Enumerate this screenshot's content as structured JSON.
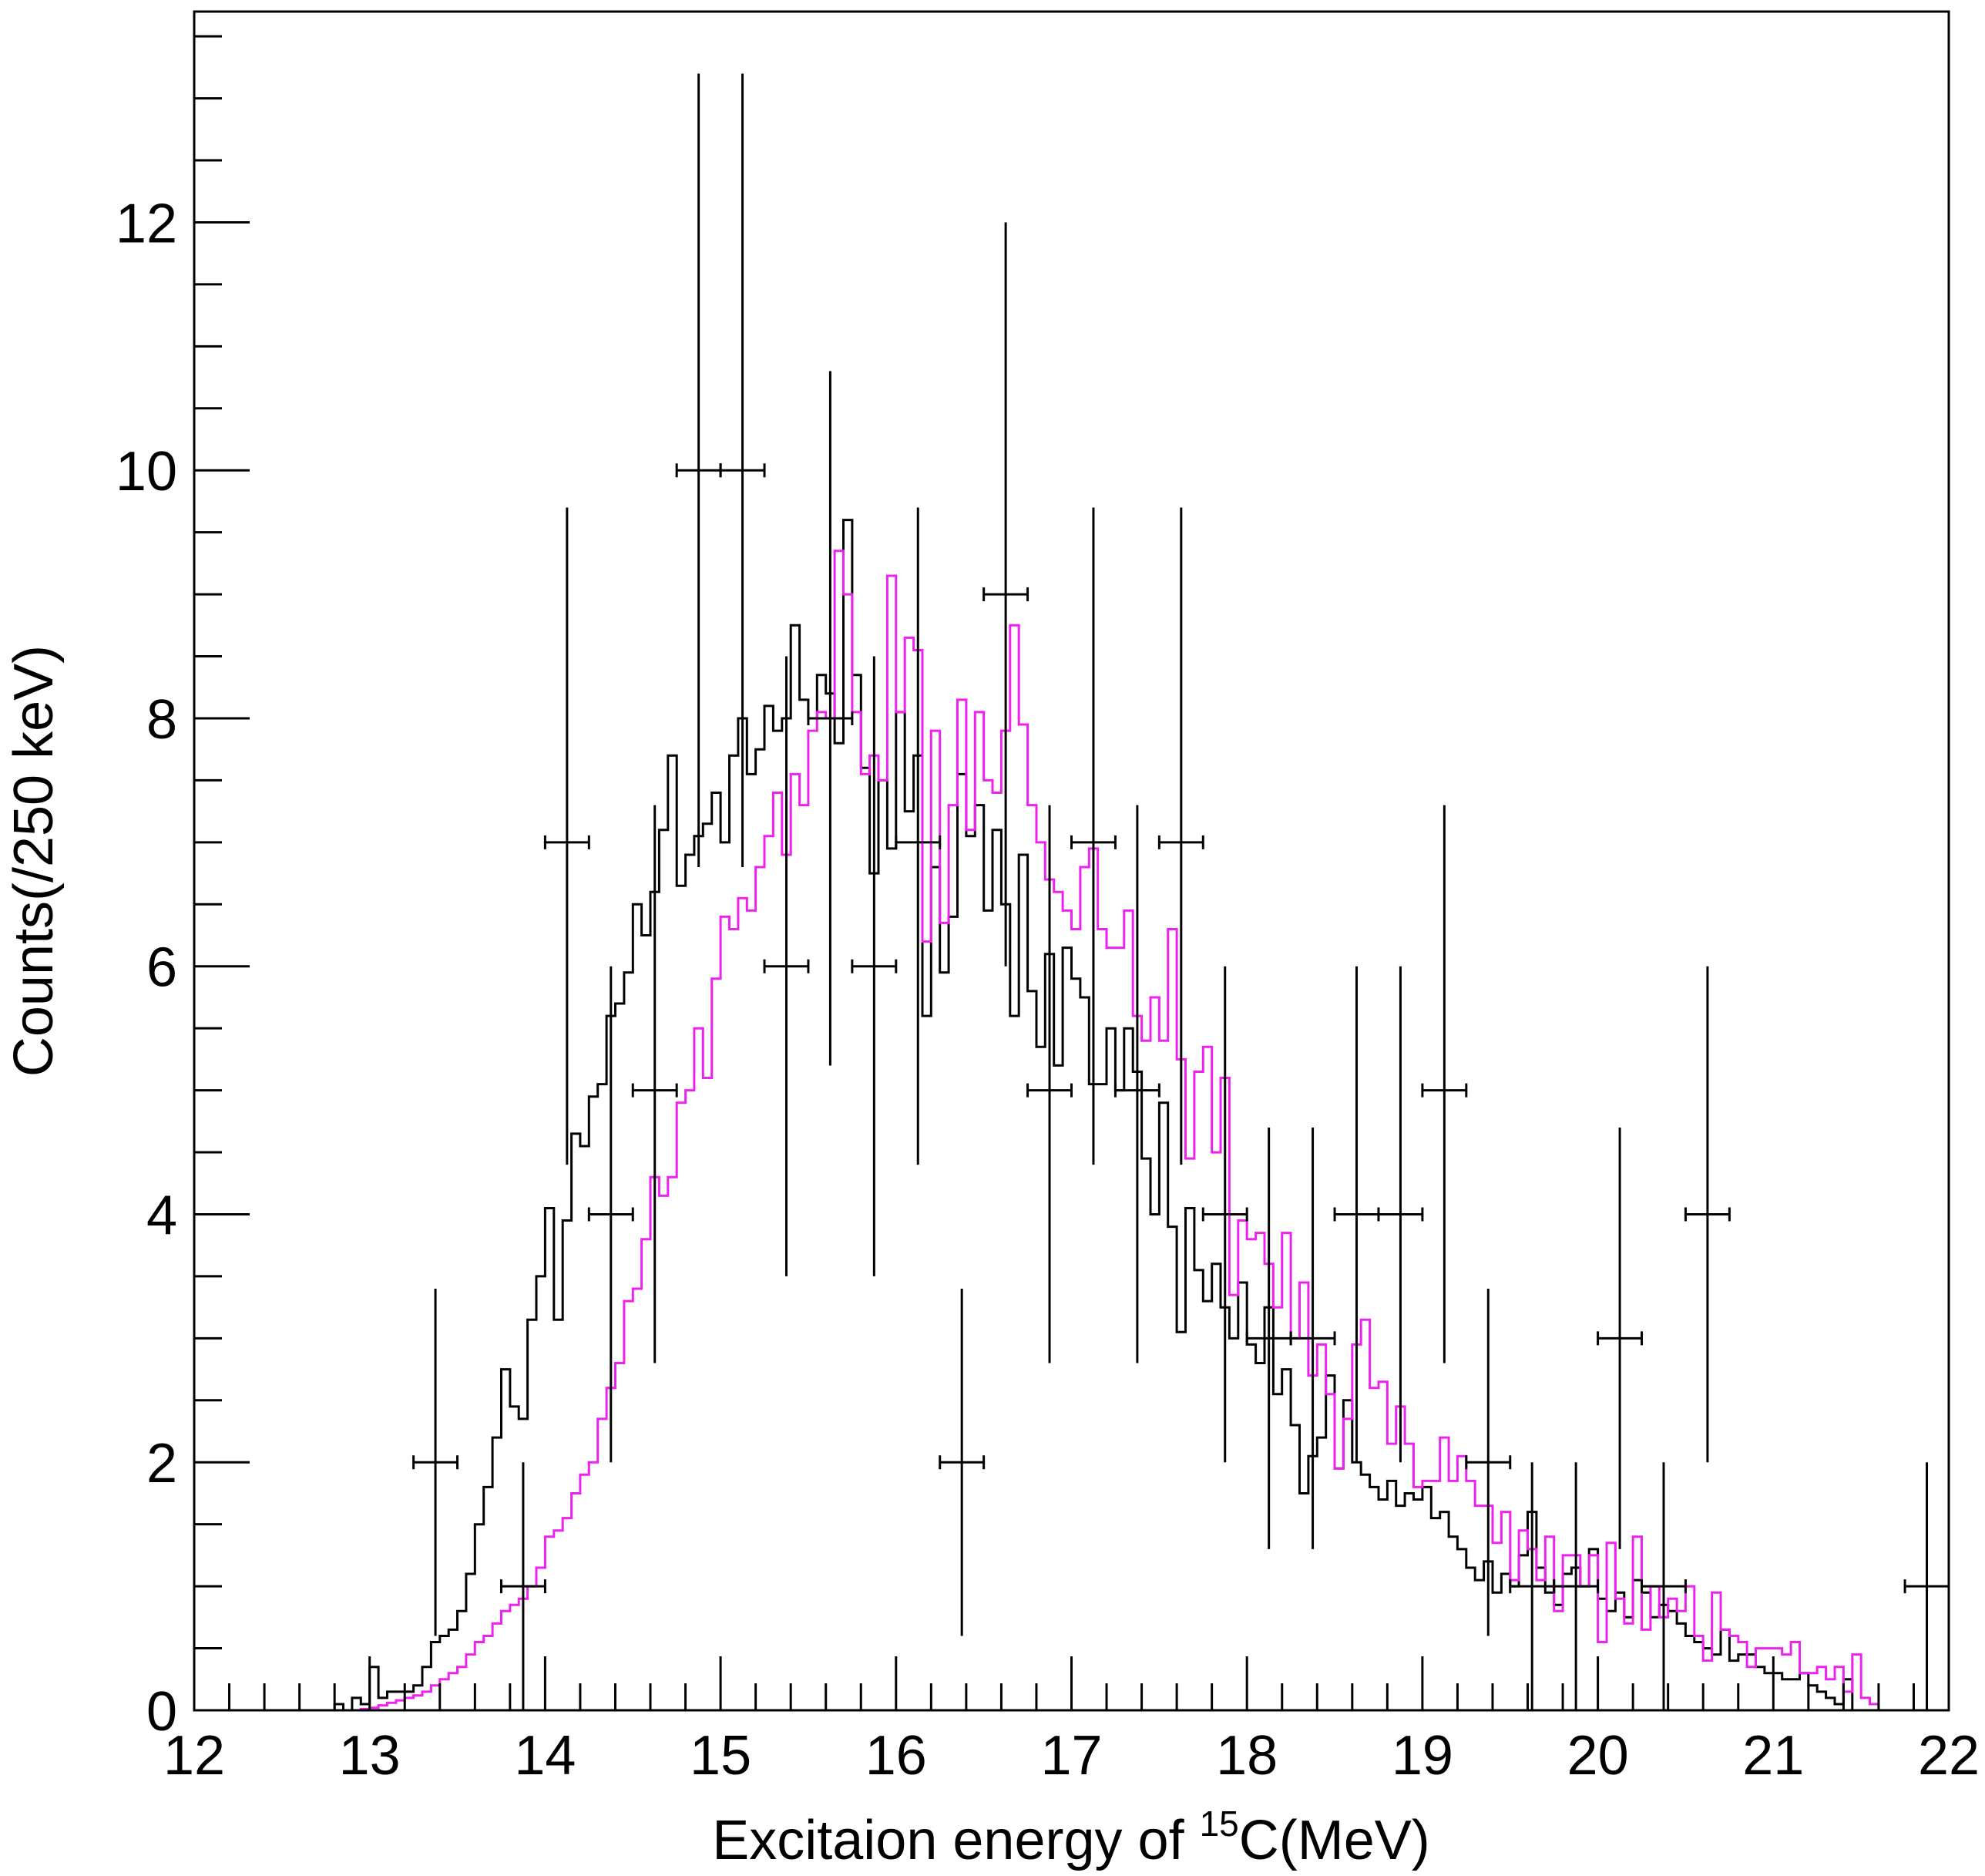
{
  "chart_data": {
    "type": "histogram",
    "xlabel_main": "Excitaion energy of ",
    "xlabel_super": "15",
    "xlabel_tail": "C(MeV)",
    "ylabel": "Counts(/250 keV)",
    "xlim": [
      12,
      22
    ],
    "ylim": [
      0,
      13.7
    ],
    "x_ticks": [
      12,
      13,
      14,
      15,
      16,
      17,
      18,
      19,
      20,
      21,
      22
    ],
    "y_ticks": [
      0,
      2,
      4,
      6,
      8,
      10,
      12
    ],
    "grid": false,
    "colors": {
      "black_hist": "#000000",
      "magenta_hist": "#ee22ee",
      "data": "#000000"
    },
    "bin_width": 0.05,
    "black_hist": [
      0,
      0,
      0,
      0,
      0,
      0,
      0,
      0,
      0,
      0,
      0,
      0,
      0,
      0,
      0,
      0,
      0.05,
      0,
      0.1,
      0.05,
      0.35,
      0.1,
      0.15,
      0.15,
      0.15,
      0.2,
      0.35,
      0.55,
      0.6,
      0.65,
      0.8,
      1.1,
      1.5,
      1.8,
      2.2,
      2.75,
      2.45,
      2.35,
      3.15,
      3.5,
      4.05,
      3.15,
      3.95,
      4.65,
      4.55,
      4.95,
      5.05,
      5.6,
      5.7,
      5.95,
      6.5,
      6.25,
      6.6,
      7.1,
      7.7,
      6.65,
      6.9,
      7.05,
      7.15,
      7.4,
      7.0,
      7.7,
      8.0,
      7.55,
      7.75,
      8.1,
      7.9,
      8.0,
      8.75,
      8.15,
      8.0,
      8.35,
      8.2,
      7.8,
      9.6,
      8.35,
      7.6,
      6.75,
      7.5,
      6.95,
      8.05,
      7.25,
      7.7,
      5.6,
      6.8,
      5.95,
      6.4,
      7.55,
      7.05,
      7.3,
      6.45,
      7.1,
      6.5,
      5.6,
      6.9,
      5.8,
      5.35,
      6.1,
      5.2,
      6.15,
      5.9,
      5.75,
      5.05,
      5.05,
      5.5,
      5.0,
      5.5,
      5.15,
      4.45,
      4.0,
      4.9,
      3.9,
      3.05,
      4.05,
      3.55,
      3.3,
      3.6,
      3.25,
      3.0,
      3.45,
      2.95,
      2.8,
      3.25,
      2.55,
      2.75,
      2.3,
      1.75,
      2.05,
      2.2,
      2.7,
      1.95,
      2.5,
      2.0,
      1.9,
      1.8,
      1.7,
      1.85,
      1.65,
      1.75,
      1.7,
      1.8,
      1.55,
      1.6,
      1.4,
      1.3,
      1.15,
      1.05,
      1.2,
      0.95,
      1.1,
      1.0,
      1.25,
      1.6,
      1.15,
      0.95,
      0.85,
      1.1,
      1.15,
      1.0,
      1.3,
      0.9,
      0.8,
      0.95,
      0.75,
      1.05,
      0.95,
      0.75,
      0.85,
      0.8,
      0.7,
      0.6,
      0.55,
      0.5,
      0.45,
      0.65,
      0.4,
      0.45,
      0.45,
      0.35,
      0.3,
      0.3,
      0.25,
      0.25,
      0.3,
      0.2,
      0.15,
      0.1,
      0.05,
      0.25
    ],
    "magenta_hist": [
      0,
      0,
      0,
      0,
      0,
      0,
      0,
      0,
      0,
      0,
      0,
      0,
      0,
      0,
      0,
      0,
      0,
      0,
      0,
      0.01,
      0.02,
      0.04,
      0.06,
      0.08,
      0.1,
      0.12,
      0.15,
      0.2,
      0.25,
      0.3,
      0.35,
      0.45,
      0.55,
      0.6,
      0.7,
      0.8,
      0.85,
      0.9,
      1.0,
      1.15,
      1.4,
      1.45,
      1.55,
      1.75,
      1.9,
      2.0,
      2.35,
      2.6,
      2.8,
      3.3,
      3.4,
      3.8,
      4.3,
      4.15,
      4.3,
      4.9,
      5.0,
      5.5,
      5.1,
      5.9,
      6.4,
      6.3,
      6.55,
      6.45,
      6.8,
      7.05,
      7.4,
      6.9,
      7.55,
      7.3,
      7.9,
      8.05,
      8.0,
      9.35,
      9.0,
      8.05,
      7.55,
      7.7,
      7.5,
      9.15,
      8.05,
      8.65,
      8.55,
      6.2,
      7.9,
      6.35,
      7.3,
      8.15,
      7.1,
      8.05,
      7.5,
      7.4,
      7.9,
      8.75,
      7.95,
      7.3,
      7.0,
      6.7,
      6.6,
      6.45,
      6.3,
      6.8,
      6.95,
      6.3,
      6.15,
      6.15,
      6.45,
      5.6,
      5.4,
      5.75,
      5.4,
      6.3,
      5.25,
      4.45,
      5.15,
      5.35,
      4.5,
      5.1,
      3.35,
      3.95,
      3.8,
      3.85,
      3.6,
      3.25,
      3.85,
      3.0,
      3.45,
      2.7,
      2.95,
      2.55,
      1.95,
      2.35,
      2.95,
      3.15,
      2.6,
      2.65,
      2.15,
      2.45,
      2.15,
      1.8,
      1.85,
      1.85,
      2.2,
      1.85,
      2.05,
      1.85,
      1.65,
      1.65,
      1.35,
      1.6,
      1.05,
      1.45,
      1.3,
      1.05,
      1.4,
      0.8,
      1.25,
      1.25,
      1.0,
      1.25,
      0.55,
      1.35,
      0.9,
      0.7,
      1.4,
      0.65,
      1.0,
      0.75,
      0.9,
      0.8,
      1.0,
      0.6,
      0.4,
      0.95,
      0.65,
      0.6,
      0.55,
      0.35,
      0.5,
      0.5,
      0.5,
      0.45,
      0.55,
      0.3,
      0.3,
      0.35,
      0.25,
      0.35,
      0.15,
      0.45,
      0.1,
      0.05,
      0
    ],
    "data_points": [
      {
        "x": 13.375,
        "y": 2,
        "ylo": 0.6,
        "yhi": 3.4
      },
      {
        "x": 13.875,
        "y": 1,
        "ylo": 0,
        "yhi": 2.0
      },
      {
        "x": 14.125,
        "y": 7,
        "ylo": 4.4,
        "yhi": 9.7
      },
      {
        "x": 14.375,
        "y": 4,
        "ylo": 2.0,
        "yhi": 6.0
      },
      {
        "x": 14.625,
        "y": 5,
        "ylo": 2.8,
        "yhi": 7.3
      },
      {
        "x": 14.875,
        "y": 10,
        "ylo": 6.8,
        "yhi": 13.2
      },
      {
        "x": 15.125,
        "y": 10,
        "ylo": 6.8,
        "yhi": 13.2
      },
      {
        "x": 15.375,
        "y": 6,
        "ylo": 3.5,
        "yhi": 8.5
      },
      {
        "x": 15.625,
        "y": 8,
        "ylo": 5.2,
        "yhi": 10.8
      },
      {
        "x": 15.875,
        "y": 6,
        "ylo": 3.5,
        "yhi": 8.5
      },
      {
        "x": 16.125,
        "y": 7,
        "ylo": 4.4,
        "yhi": 9.7
      },
      {
        "x": 16.375,
        "y": 2,
        "ylo": 0.6,
        "yhi": 3.4
      },
      {
        "x": 16.625,
        "y": 9,
        "ylo": 6.0,
        "yhi": 12.0
      },
      {
        "x": 16.875,
        "y": 5,
        "ylo": 2.8,
        "yhi": 7.3
      },
      {
        "x": 17.125,
        "y": 7,
        "ylo": 4.4,
        "yhi": 9.7
      },
      {
        "x": 17.375,
        "y": 5,
        "ylo": 2.8,
        "yhi": 7.3
      },
      {
        "x": 17.625,
        "y": 7,
        "ylo": 4.4,
        "yhi": 9.7
      },
      {
        "x": 17.875,
        "y": 4,
        "ylo": 2.0,
        "yhi": 6.0
      },
      {
        "x": 18.125,
        "y": 3,
        "ylo": 1.3,
        "yhi": 4.7
      },
      {
        "x": 18.375,
        "y": 3,
        "ylo": 1.3,
        "yhi": 4.7
      },
      {
        "x": 18.625,
        "y": 4,
        "ylo": 2.0,
        "yhi": 6.0
      },
      {
        "x": 18.875,
        "y": 4,
        "ylo": 2.0,
        "yhi": 6.0
      },
      {
        "x": 19.125,
        "y": 5,
        "ylo": 2.8,
        "yhi": 7.3
      },
      {
        "x": 19.375,
        "y": 2,
        "ylo": 0.6,
        "yhi": 3.4
      },
      {
        "x": 19.625,
        "y": 1,
        "ylo": 0,
        "yhi": 2.0
      },
      {
        "x": 19.875,
        "y": 1,
        "ylo": 0,
        "yhi": 2.0
      },
      {
        "x": 20.125,
        "y": 3,
        "ylo": 1.3,
        "yhi": 4.7
      },
      {
        "x": 20.375,
        "y": 1,
        "ylo": 0,
        "yhi": 2.0
      },
      {
        "x": 20.625,
        "y": 4,
        "ylo": 2.0,
        "yhi": 6.0
      },
      {
        "x": 21.875,
        "y": 1,
        "ylo": 0,
        "yhi": 2.0
      }
    ]
  }
}
